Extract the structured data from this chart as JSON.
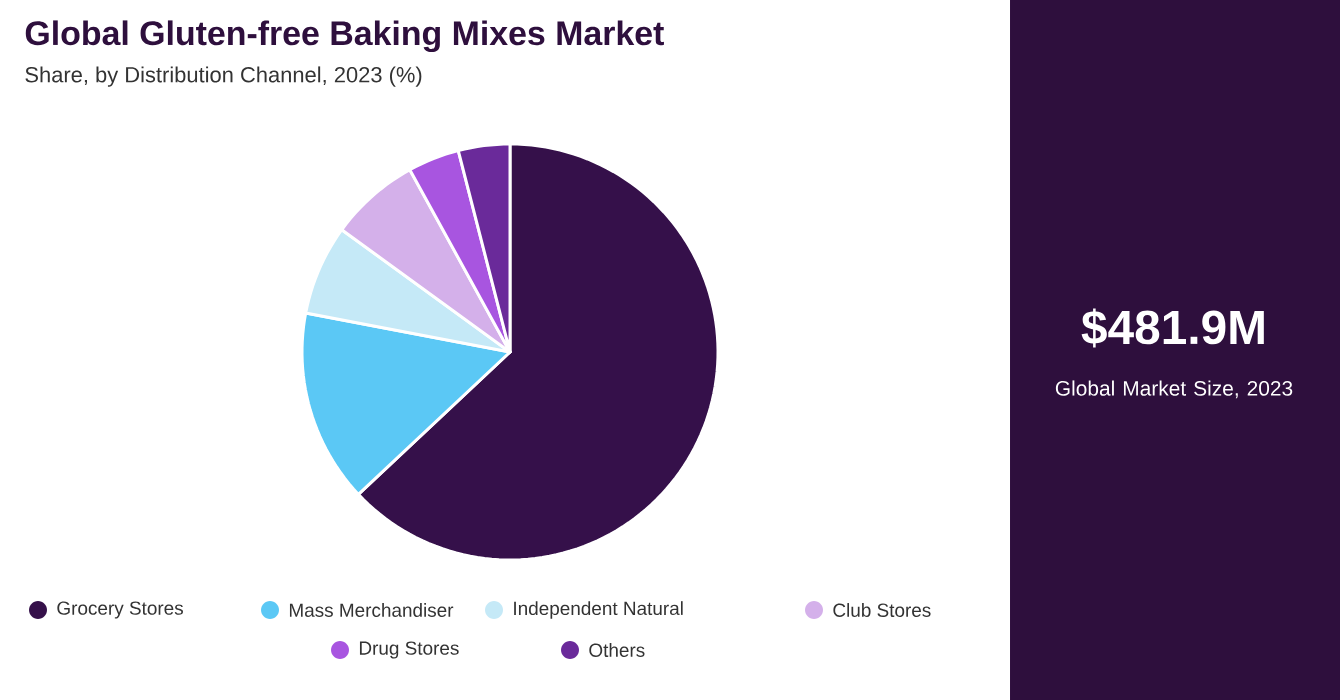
{
  "chart_data": {
    "type": "pie",
    "title": "Global Gluten-free Baking Mixes Market",
    "subtitle": "Share, by Distribution Channel, 2023 (%)",
    "categories": [
      "Grocery Stores",
      "Mass Merchandiser",
      "Independent Natural",
      "Club Stores",
      "Drug Stores",
      "Others"
    ],
    "values": [
      63,
      15,
      7,
      7,
      4,
      4
    ],
    "colors": [
      "#35104a",
      "#5bc8f5",
      "#c5e9f7",
      "#d4b0ea",
      "#a855e0",
      "#6a2a9a"
    ],
    "legend": "bottom",
    "annotations": [
      "$481.9M",
      "Global Market Size, 2023"
    ]
  }
}
